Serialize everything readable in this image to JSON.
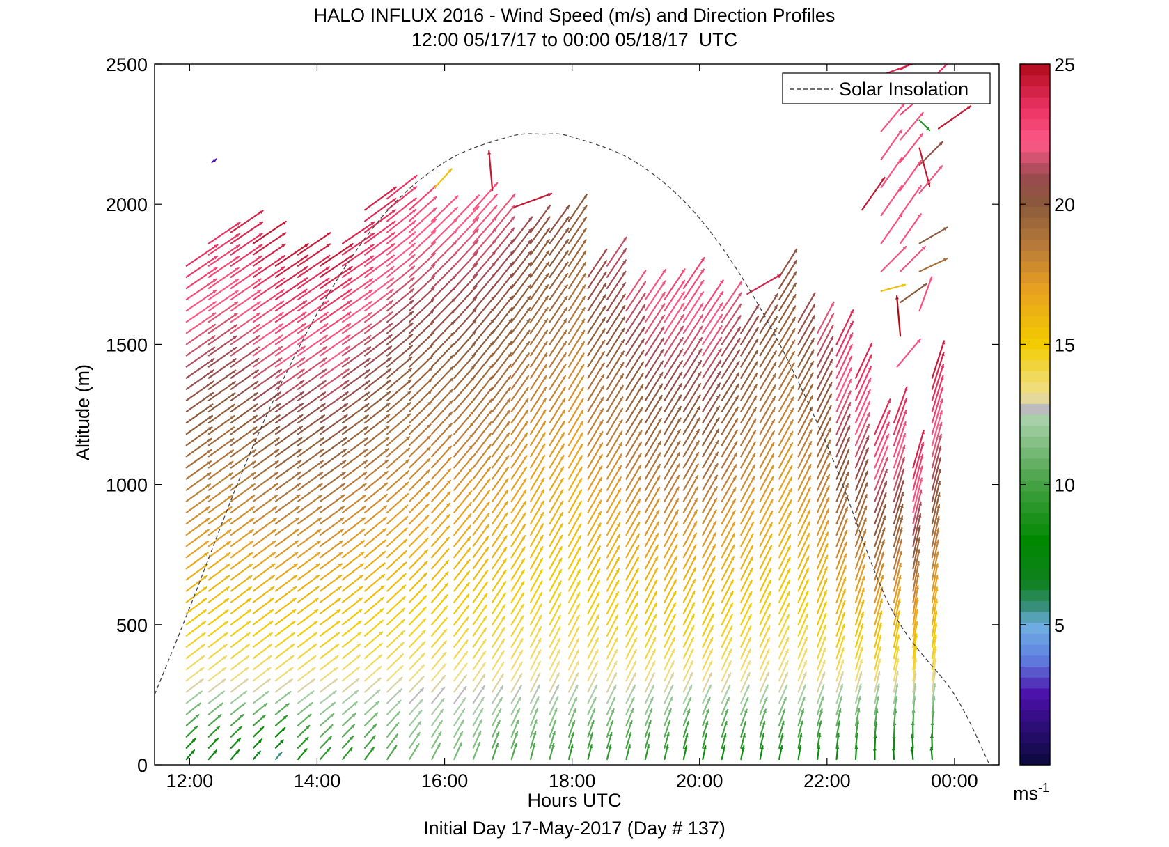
{
  "chart_data": {
    "type": "quiver",
    "title": "HALO INFLUX 2016 - Wind Speed (m/s) and Direction Profiles",
    "subtitle": "12:00 05/17/17 to 00:00 05/18/17  UTC",
    "xlabel": "Hours UTC",
    "xlabel_note": "Initial Day 17-May-2017 (Day # 137)",
    "ylabel": "Altitude (m)",
    "xlim": [
      11.45,
      24.7
    ],
    "ylim": [
      0,
      2500
    ],
    "x_ticks": [
      12,
      14,
      16,
      18,
      20,
      22,
      24
    ],
    "x_tick_labels": [
      "12:00",
      "14:00",
      "16:00",
      "18:00",
      "20:00",
      "22:00",
      "00:00"
    ],
    "y_ticks": [
      0,
      500,
      1000,
      1500,
      2000,
      2500
    ],
    "y_tick_labels": [
      "0",
      "500",
      "1000",
      "1500",
      "2000",
      "2500"
    ],
    "legend": {
      "entries": [
        "Solar Insolation"
      ],
      "placement": "top-right"
    },
    "colorbar": {
      "range": [
        0,
        25
      ],
      "ticks": [
        5,
        10,
        15,
        20,
        25
      ],
      "tick_labels": [
        "5",
        "10",
        "15",
        "20",
        "25"
      ],
      "unit_label": "ms",
      "unit_exponent": "-1",
      "stops": [
        {
          "v": 0,
          "c": "#0a0a3a"
        },
        {
          "v": 2.5,
          "c": "#4a10a8"
        },
        {
          "v": 3.8,
          "c": "#6080e0"
        },
        {
          "v": 5.0,
          "c": "#70b0e0"
        },
        {
          "v": 5.6,
          "c": "#3a9080"
        },
        {
          "v": 6.5,
          "c": "#108020"
        },
        {
          "v": 8.0,
          "c": "#008800"
        },
        {
          "v": 10.0,
          "c": "#44a044"
        },
        {
          "v": 12.3,
          "c": "#a8d0a8"
        },
        {
          "v": 12.7,
          "c": "#bcbcbc"
        },
        {
          "v": 13.2,
          "c": "#f0e090"
        },
        {
          "v": 15.0,
          "c": "#f2cc00"
        },
        {
          "v": 17.0,
          "c": "#e8a020"
        },
        {
          "v": 18.5,
          "c": "#b87a3a"
        },
        {
          "v": 20.0,
          "c": "#8a5a3a"
        },
        {
          "v": 21.0,
          "c": "#9a4a50"
        },
        {
          "v": 22.2,
          "c": "#ff5a88"
        },
        {
          "v": 23.5,
          "c": "#e83060"
        },
        {
          "v": 25.0,
          "c": "#b00a1a"
        }
      ]
    },
    "solar_insolation": {
      "style": "dashed",
      "color": "#444444",
      "points": [
        [
          11.45,
          250
        ],
        [
          12.0,
          560
        ],
        [
          13.0,
          1140
        ],
        [
          14.0,
          1610
        ],
        [
          15.0,
          1950
        ],
        [
          16.0,
          2150
        ],
        [
          17.0,
          2240
        ],
        [
          17.55,
          2250
        ],
        [
          18.0,
          2240
        ],
        [
          19.0,
          2150
        ],
        [
          20.0,
          1950
        ],
        [
          21.0,
          1610
        ],
        [
          22.0,
          1140
        ],
        [
          23.0,
          560
        ],
        [
          24.0,
          250
        ],
        [
          24.55,
          0
        ]
      ]
    },
    "profiles": [
      {
        "t": 11.95,
        "top": 1790,
        "dir": 232,
        "dirTop": 236,
        "spdBase": 7,
        "spdTop": 23.5
      },
      {
        "t": 12.3,
        "top": 1870,
        "dir": 232,
        "dirTop": 236,
        "spdBase": 7,
        "spdTop": 23.5
      },
      {
        "t": 12.65,
        "top": 1930,
        "dir": 232,
        "dirTop": 236,
        "spdBase": 7,
        "spdTop": 24.2
      },
      {
        "t": 13.0,
        "top": 1860,
        "dir": 232,
        "dirTop": 236,
        "spdBase": 6,
        "spdTop": 24.5
      },
      {
        "t": 13.35,
        "top": 1780,
        "dir": 232,
        "dirTop": 236,
        "spdBase": 5,
        "spdTop": 24.5
      },
      {
        "t": 13.7,
        "top": 1840,
        "dir": 232,
        "dirTop": 236,
        "spdBase": 8,
        "spdTop": 24.5
      },
      {
        "t": 14.05,
        "top": 1780,
        "dir": 232,
        "dirTop": 236,
        "spdBase": 9,
        "spdTop": 24.5
      },
      {
        "t": 14.4,
        "top": 1880,
        "dir": 230,
        "dirTop": 236,
        "spdBase": 9,
        "spdTop": 24.0
      },
      {
        "t": 14.75,
        "top": 1980,
        "dir": 228,
        "dirTop": 234,
        "spdBase": 9,
        "spdTop": 24.0
      },
      {
        "t": 15.1,
        "top": 2040,
        "dir": 225,
        "dirTop": 232,
        "spdBase": 10,
        "spdTop": 23.5
      },
      {
        "t": 15.45,
        "top": 2000,
        "dir": 222,
        "dirTop": 228,
        "spdBase": 11,
        "spdTop": 23.0
      },
      {
        "t": 15.8,
        "top": 1950,
        "dir": 218,
        "dirTop": 226,
        "spdBase": 11,
        "spdTop": 22.5
      },
      {
        "t": 16.15,
        "top": 1970,
        "dir": 215,
        "dirTop": 224,
        "spdBase": 11,
        "spdTop": 22.5
      },
      {
        "t": 16.45,
        "top": 1990,
        "dir": 212,
        "dirTop": 222,
        "spdBase": 11,
        "spdTop": 22.5
      },
      {
        "t": 16.75,
        "top": 1960,
        "dir": 210,
        "dirTop": 220,
        "spdBase": 10,
        "spdTop": 22.0
      },
      {
        "t": 17.05,
        "top": 1880,
        "dir": 208,
        "dirTop": 218,
        "spdBase": 10,
        "spdTop": 21.0
      },
      {
        "t": 17.35,
        "top": 1900,
        "dir": 205,
        "dirTop": 216,
        "spdBase": 10,
        "spdTop": 20.5
      },
      {
        "t": 17.65,
        "top": 1900,
        "dir": 205,
        "dirTop": 216,
        "spdBase": 10,
        "spdTop": 20.5
      },
      {
        "t": 17.95,
        "top": 1940,
        "dir": 205,
        "dirTop": 214,
        "spdBase": 9,
        "spdTop": 20.0
      },
      {
        "t": 18.25,
        "top": 1760,
        "dir": 205,
        "dirTop": 214,
        "spdBase": 9,
        "spdTop": 21.0
      },
      {
        "t": 18.55,
        "top": 1780,
        "dir": 205,
        "dirTop": 214,
        "spdBase": 9,
        "spdTop": 21.5
      },
      {
        "t": 18.85,
        "top": 1690,
        "dir": 205,
        "dirTop": 214,
        "spdBase": 9,
        "spdTop": 22.0
      },
      {
        "t": 19.15,
        "top": 1660,
        "dir": 204,
        "dirTop": 214,
        "spdBase": 9,
        "spdTop": 22.5
      },
      {
        "t": 19.45,
        "top": 1690,
        "dir": 204,
        "dirTop": 214,
        "spdBase": 9,
        "spdTop": 23.0
      },
      {
        "t": 19.75,
        "top": 1700,
        "dir": 203,
        "dirTop": 214,
        "spdBase": 8,
        "spdTop": 23.0
      },
      {
        "t": 20.05,
        "top": 1640,
        "dir": 203,
        "dirTop": 214,
        "spdBase": 8,
        "spdTop": 23.0
      },
      {
        "t": 20.35,
        "top": 1620,
        "dir": 203,
        "dirTop": 214,
        "spdBase": 8,
        "spdTop": 22.0
      },
      {
        "t": 20.65,
        "top": 1560,
        "dir": 203,
        "dirTop": 212,
        "spdBase": 8,
        "spdTop": 21.0
      },
      {
        "t": 20.95,
        "top": 1580,
        "dir": 202,
        "dirTop": 212,
        "spdBase": 8,
        "spdTop": 20.5
      },
      {
        "t": 21.25,
        "top": 1740,
        "dir": 202,
        "dirTop": 212,
        "spdBase": 8,
        "spdTop": 20.5
      },
      {
        "t": 21.55,
        "top": 1600,
        "dir": 200,
        "dirTop": 210,
        "spdBase": 8,
        "spdTop": 21.0
      },
      {
        "t": 21.85,
        "top": 1570,
        "dir": 198,
        "dirTop": 208,
        "spdBase": 8,
        "spdTop": 22.0
      },
      {
        "t": 22.15,
        "top": 1530,
        "dir": 196,
        "dirTop": 206,
        "spdBase": 8,
        "spdTop": 24.0
      },
      {
        "t": 22.45,
        "top": 1400,
        "dir": 194,
        "dirTop": 205,
        "spdBase": 8,
        "spdTop": 24.0
      },
      {
        "t": 22.75,
        "top": 1210,
        "dir": 190,
        "dirTop": 204,
        "spdBase": 7,
        "spdTop": 24.0
      },
      {
        "t": 23.05,
        "top": 1240,
        "dir": 188,
        "dirTop": 200,
        "spdBase": 7,
        "spdTop": 24.0
      },
      {
        "t": 23.35,
        "top": 1060,
        "dir": 184,
        "dirTop": 196,
        "spdBase": 7,
        "spdTop": 24.0
      },
      {
        "t": 23.65,
        "top": 1400,
        "dir": 186,
        "dirTop": 198,
        "spdBase": 7,
        "spdTop": 24.5
      }
    ],
    "upper_barbs": [
      {
        "t": 12.35,
        "alt": 2150,
        "dir": 236,
        "spd": 2.5
      },
      {
        "t": 15.85,
        "alt": 2060,
        "dir": 222,
        "spd": 15.5
      },
      {
        "t": 16.75,
        "alt": 2050,
        "dir": 175,
        "spd": 24.5
      },
      {
        "t": 17.1,
        "alt": 1990,
        "dir": 250,
        "spd": 24.5
      },
      {
        "t": 20.75,
        "alt": 1680,
        "dir": 240,
        "spd": 24.0
      },
      {
        "t": 22.55,
        "alt": 1980,
        "dir": 215,
        "spd": 24.5
      },
      {
        "t": 22.85,
        "alt": 2460,
        "dir": 250,
        "spd": 24.0
      },
      {
        "t": 23.15,
        "alt": 2480,
        "dir": 240,
        "spd": 24.0
      },
      {
        "t": 22.85,
        "alt": 2360,
        "dir": 235,
        "spd": 23.0
      },
      {
        "t": 23.15,
        "alt": 2320,
        "dir": 230,
        "spd": 23.0
      },
      {
        "t": 23.45,
        "alt": 2380,
        "dir": 228,
        "spd": 22.0
      },
      {
        "t": 23.45,
        "alt": 2300,
        "dir": 315,
        "spd": 9.0
      },
      {
        "t": 23.75,
        "alt": 2470,
        "dir": 225,
        "spd": 23.5
      },
      {
        "t": 22.85,
        "alt": 2260,
        "dir": 220,
        "spd": 22.5
      },
      {
        "t": 23.15,
        "alt": 2230,
        "dir": 220,
        "spd": 22.0
      },
      {
        "t": 23.45,
        "alt": 2200,
        "dir": 345,
        "spd": 24.5
      },
      {
        "t": 23.75,
        "alt": 2270,
        "dir": 235,
        "spd": 24.5
      },
      {
        "t": 22.85,
        "alt": 2160,
        "dir": 215,
        "spd": 22.5
      },
      {
        "t": 23.15,
        "alt": 2150,
        "dir": 218,
        "spd": 22.5
      },
      {
        "t": 23.45,
        "alt": 2140,
        "dir": 225,
        "spd": 20.5
      },
      {
        "t": 22.85,
        "alt": 2060,
        "dir": 215,
        "spd": 22.5
      },
      {
        "t": 23.15,
        "alt": 2050,
        "dir": 215,
        "spd": 22.5
      },
      {
        "t": 23.45,
        "alt": 2040,
        "dir": 220,
        "spd": 22.0
      },
      {
        "t": 22.85,
        "alt": 1960,
        "dir": 215,
        "spd": 22.5
      },
      {
        "t": 23.15,
        "alt": 1960,
        "dir": 215,
        "spd": 22.5
      },
      {
        "t": 22.85,
        "alt": 1860,
        "dir": 215,
        "spd": 22.5
      },
      {
        "t": 23.15,
        "alt": 1860,
        "dir": 215,
        "spd": 22.5
      },
      {
        "t": 23.45,
        "alt": 1860,
        "dir": 240,
        "spd": 20.0
      },
      {
        "t": 22.85,
        "alt": 1760,
        "dir": 225,
        "spd": 22.0
      },
      {
        "t": 23.15,
        "alt": 1760,
        "dir": 225,
        "spd": 22.0
      },
      {
        "t": 23.45,
        "alt": 1760,
        "dir": 245,
        "spd": 19.0
      },
      {
        "t": 22.85,
        "alt": 1690,
        "dir": 255,
        "spd": 15.5
      },
      {
        "t": 23.45,
        "alt": 1620,
        "dir": 200,
        "spd": 22.5
      },
      {
        "t": 23.15,
        "alt": 1650,
        "dir": 235,
        "spd": 20.0
      },
      {
        "t": 23.15,
        "alt": 1530,
        "dir": 175,
        "spd": 25.0
      },
      {
        "t": 23.1,
        "alt": 1420,
        "dir": 220,
        "spd": 22.5
      }
    ]
  }
}
